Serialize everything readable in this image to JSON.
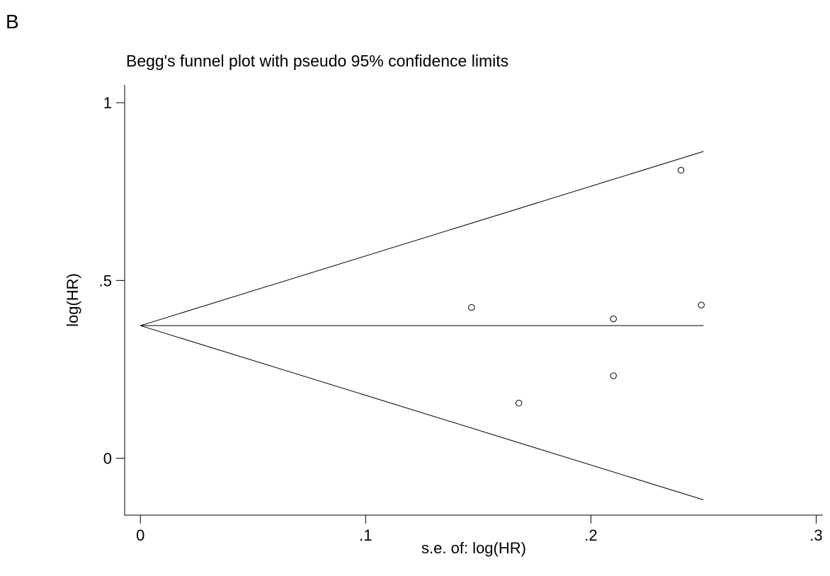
{
  "panel_label": "B",
  "chart_data": {
    "type": "scatter",
    "title": "Begg's funnel plot with pseudo 95% confidence limits",
    "xlabel": "s.e. of: log(HR)",
    "ylabel": "log(HR)",
    "xlim": [
      -0.007,
      0.303
    ],
    "ylim": [
      -0.16,
      1.05
    ],
    "x_ticks": [
      {
        "value": 0,
        "label": "0"
      },
      {
        "value": 0.1,
        "label": ".1"
      },
      {
        "value": 0.2,
        "label": ".2"
      },
      {
        "value": 0.3,
        "label": ".3"
      }
    ],
    "y_ticks": [
      {
        "value": 0,
        "label": "0"
      },
      {
        "value": 0.5,
        "label": ".5"
      },
      {
        "value": 1,
        "label": "1"
      }
    ],
    "grid": false,
    "pooled_estimate": 0.373,
    "max_se": 0.25,
    "lines": [
      {
        "x": [
          0,
          0.25
        ],
        "y": [
          0.373,
          0.863
        ]
      },
      {
        "x": [
          0,
          0.25
        ],
        "y": [
          0.373,
          -0.117
        ]
      },
      {
        "x": [
          0,
          0.25
        ],
        "y": [
          0.373,
          0.373
        ]
      }
    ],
    "points": [
      {
        "x": 0.147,
        "y": 0.424
      },
      {
        "x": 0.168,
        "y": 0.155
      },
      {
        "x": 0.21,
        "y": 0.392
      },
      {
        "x": 0.21,
        "y": 0.232
      },
      {
        "x": 0.24,
        "y": 0.81
      },
      {
        "x": 0.249,
        "y": 0.431
      }
    ],
    "marker": "hollow-circle",
    "color": "#000000"
  }
}
